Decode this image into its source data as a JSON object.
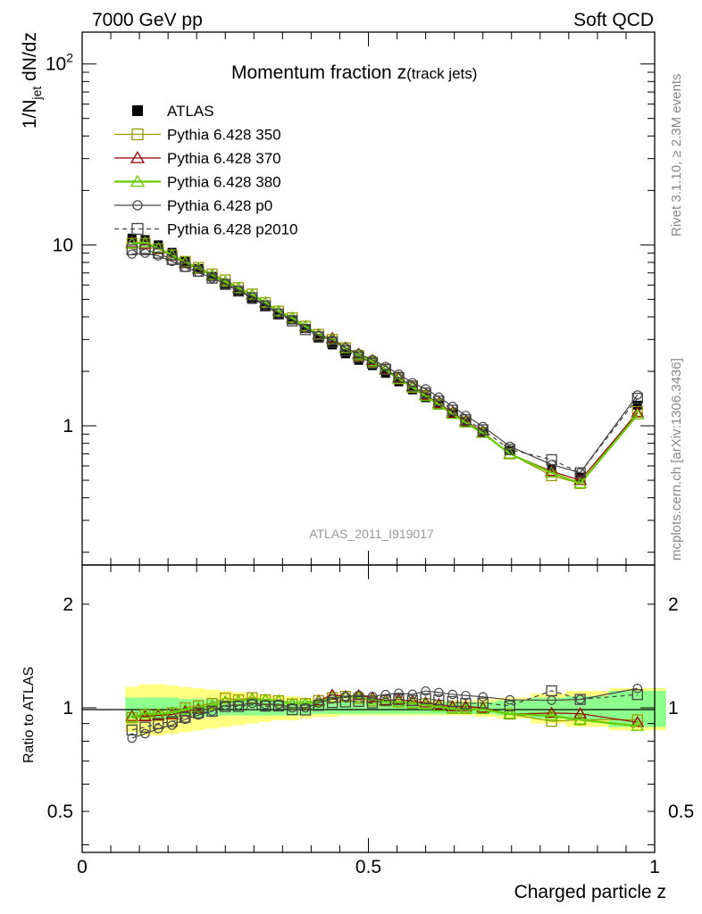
{
  "header": {
    "left": "7000 GeV pp",
    "right": "Soft QCD"
  },
  "chart_data": [
    {
      "type": "line",
      "title": "Momentum fraction z(track jets)",
      "title_main": "Momentum fraction z",
      "title_sub": "(track jets)",
      "ylabel": "1/N_jet dN/dz",
      "ylabel_main": "1/N",
      "ylabel_sub": "jet",
      "ylabel_tail": " dN/dz",
      "yscale": "log",
      "ylim": [
        0.17,
        150
      ],
      "xlim": [
        0,
        1
      ],
      "yticks": [
        {
          "value": 1,
          "label": "1"
        },
        {
          "value": 10,
          "label": "10"
        },
        {
          "value": 100,
          "label": "10",
          "sup": "2"
        }
      ],
      "legend_position": "top-left",
      "annotation": "ATLAS_2011_I919017",
      "side_labels": [
        "Rivet 3.1.10, ≥ 2.3M events",
        "mcplots.cern.ch [arXiv:1306.3436]"
      ],
      "x": [
        0.087,
        0.11,
        0.133,
        0.157,
        0.18,
        0.203,
        0.227,
        0.25,
        0.273,
        0.297,
        0.32,
        0.343,
        0.367,
        0.39,
        0.413,
        0.437,
        0.46,
        0.483,
        0.507,
        0.53,
        0.553,
        0.577,
        0.6,
        0.623,
        0.647,
        0.67,
        0.7,
        0.747,
        0.82,
        0.87,
        0.97
      ],
      "reference": {
        "name": "ATLAS",
        "values": [
          10.9,
          10.7,
          10.0,
          9.1,
          8.1,
          7.4,
          6.7,
          6.0,
          5.5,
          5.0,
          4.55,
          4.1,
          3.85,
          3.45,
          3.05,
          2.8,
          2.5,
          2.3,
          2.15,
          1.95,
          1.75,
          1.58,
          1.43,
          1.3,
          1.17,
          1.05,
          0.92,
          0.73,
          0.58,
          0.52,
          1.3
        ],
        "band_inner": [
          0.07,
          0.07,
          0.07,
          0.07,
          0.06,
          0.06,
          0.06,
          0.05,
          0.05,
          0.05,
          0.05,
          0.05,
          0.05,
          0.05,
          0.04,
          0.04,
          0.04,
          0.04,
          0.04,
          0.04,
          0.04,
          0.04,
          0.04,
          0.04,
          0.04,
          0.04,
          0.04,
          0.05,
          0.07,
          0.08,
          0.12
        ],
        "band_outer": [
          0.15,
          0.17,
          0.17,
          0.16,
          0.15,
          0.14,
          0.13,
          0.12,
          0.11,
          0.1,
          0.09,
          0.08,
          0.08,
          0.07,
          0.06,
          0.06,
          0.05,
          0.05,
          0.05,
          0.05,
          0.05,
          0.05,
          0.05,
          0.05,
          0.05,
          0.05,
          0.06,
          0.07,
          0.1,
          0.12,
          0.14
        ]
      },
      "series": [
        {
          "name": "Pythia 6.428 350",
          "color": "#999900",
          "marker": "square-open",
          "dash": false,
          "values": [
            10.2,
            10.2,
            9.5,
            8.8,
            8.1,
            7.5,
            6.9,
            6.4,
            5.8,
            5.35,
            4.8,
            4.3,
            3.95,
            3.55,
            3.2,
            3.0,
            2.7,
            2.45,
            2.25,
            2.05,
            1.82,
            1.63,
            1.47,
            1.32,
            1.17,
            1.05,
            0.92,
            0.7,
            0.53,
            0.48,
            1.2
          ]
        },
        {
          "name": "Pythia 6.428 370",
          "color": "#990000",
          "marker": "triangle-open",
          "dash": false,
          "values": [
            10.3,
            10.1,
            9.5,
            8.7,
            7.9,
            7.35,
            6.8,
            6.25,
            5.75,
            5.3,
            4.8,
            4.3,
            3.95,
            3.55,
            3.2,
            3.05,
            2.7,
            2.5,
            2.3,
            2.05,
            1.85,
            1.65,
            1.48,
            1.33,
            1.18,
            1.06,
            0.92,
            0.7,
            0.56,
            0.5,
            1.18
          ]
        },
        {
          "name": "Pythia 6.428 380",
          "color": "#66cc00",
          "marker": "triangle-open",
          "dash": false,
          "values": [
            10.2,
            10.3,
            9.6,
            8.8,
            8.0,
            7.4,
            6.8,
            6.25,
            5.75,
            5.3,
            4.8,
            4.3,
            3.95,
            3.55,
            3.18,
            3.0,
            2.68,
            2.47,
            2.27,
            2.03,
            1.82,
            1.63,
            1.46,
            1.31,
            1.16,
            1.04,
            0.91,
            0.7,
            0.55,
            0.48,
            1.15
          ]
        },
        {
          "name": "Pythia 6.428 p0",
          "color": "#444444",
          "marker": "circle-open",
          "dash": false,
          "values": [
            8.9,
            9.0,
            8.7,
            8.1,
            7.5,
            7.05,
            6.55,
            6.1,
            5.6,
            5.15,
            4.65,
            4.2,
            3.85,
            3.45,
            3.15,
            2.97,
            2.7,
            2.5,
            2.32,
            2.13,
            1.93,
            1.73,
            1.6,
            1.44,
            1.28,
            1.14,
            0.99,
            0.77,
            0.61,
            0.55,
            1.48
          ]
        },
        {
          "name": "Pythia 6.428 p2010",
          "color": "#444444",
          "marker": "square-open",
          "dash": true,
          "values": [
            9.4,
            9.4,
            9.0,
            8.3,
            7.6,
            7.15,
            6.55,
            6.05,
            5.55,
            5.1,
            4.6,
            4.15,
            3.8,
            3.4,
            3.1,
            2.9,
            2.6,
            2.4,
            2.22,
            2.05,
            1.85,
            1.66,
            1.52,
            1.37,
            1.22,
            1.08,
            0.95,
            0.74,
            0.65,
            0.55,
            1.42
          ]
        }
      ]
    },
    {
      "type": "line",
      "title": "",
      "ylabel": "Ratio to ATLAS",
      "xlabel": "Charged particle z",
      "yscale": "log",
      "ylim": [
        0.38,
        2.6
      ],
      "xlim": [
        0,
        1
      ],
      "yticks": [
        {
          "value": 0.5,
          "label": "0.5"
        },
        {
          "value": 1,
          "label": "1"
        },
        {
          "value": 2,
          "label": "2"
        }
      ],
      "xticks": [
        {
          "value": 0,
          "label": "0"
        },
        {
          "value": 0.5,
          "label": "0.5"
        },
        {
          "value": 1,
          "label": "1"
        }
      ],
      "note": "ratios of each Pythia series to ATLAS, same x and colors as the panel above"
    }
  ]
}
